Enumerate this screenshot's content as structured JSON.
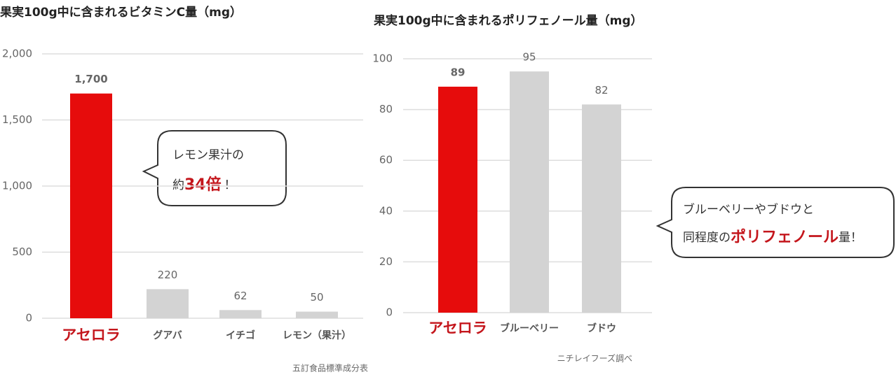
{
  "chart_data": [
    {
      "type": "bar",
      "title": "果実100g中に含まれるビタミンC量（mg）",
      "categories": [
        "アセロラ",
        "グアバ",
        "イチゴ",
        "レモン（果汁）"
      ],
      "values": [
        1700,
        220,
        62,
        50
      ],
      "value_labels": [
        "1,700",
        "220",
        "62",
        "50"
      ],
      "colors": [
        "#e60c0c",
        "#d3d3d3",
        "#d3d3d3",
        "#d3d3d3"
      ],
      "ylim": [
        0,
        2000
      ],
      "yticks": [
        0,
        500,
        {
          "value": 1000,
          "label": "1,000"
        },
        {
          "value": 1500,
          "label": "1,500"
        },
        {
          "value": 2000,
          "label": "2,000"
        }
      ],
      "grid": true,
      "callout": [
        "レモン果汁の",
        "約",
        "34倍",
        "！"
      ],
      "source": "五訂食品標準成分表"
    },
    {
      "type": "bar",
      "title": "果実100g中に含まれるポリフェノール量（mg）",
      "categories": [
        "アセロラ",
        "ブルーベリー",
        "ブドウ"
      ],
      "values": [
        89,
        95,
        82
      ],
      "colors": [
        "#e60c0c",
        "#d3d3d3",
        "#d3d3d3"
      ],
      "ylim": [
        0,
        100
      ],
      "yticks": [
        0,
        20,
        40,
        60,
        80,
        100
      ],
      "grid": true,
      "callout": [
        "ブルーベリーやブドウと",
        "同程度の",
        "ポリフェノール",
        "量！"
      ],
      "source": "ニチレイフーズ調べ"
    }
  ]
}
